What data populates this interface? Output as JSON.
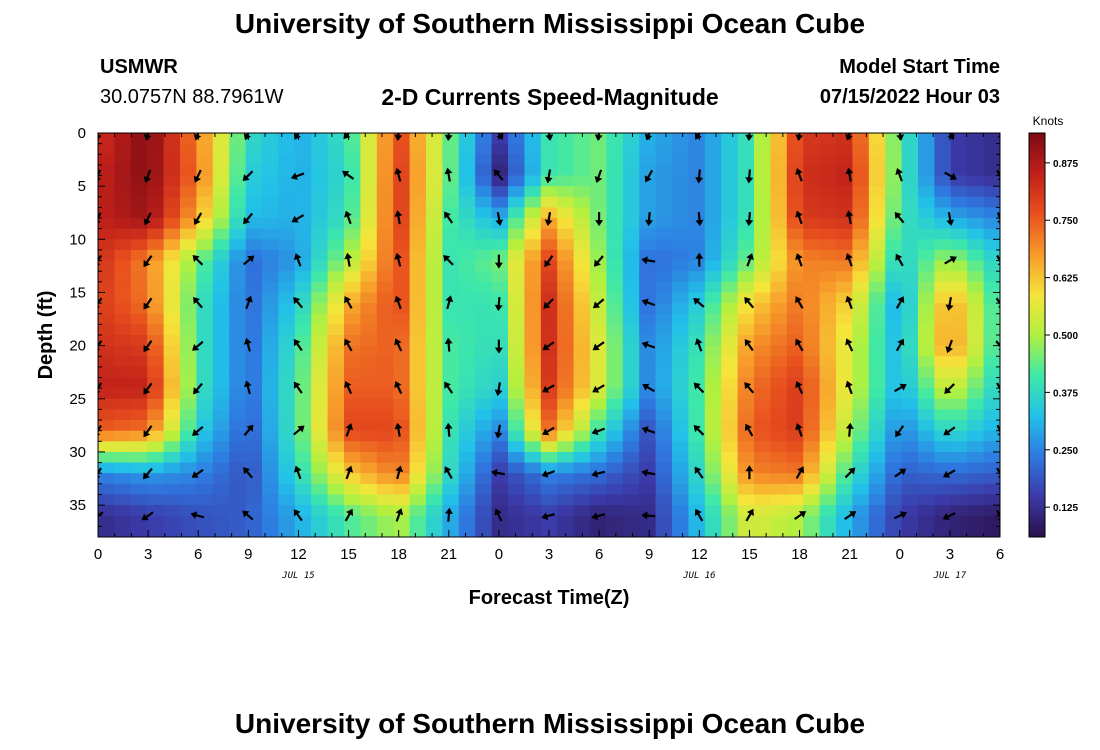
{
  "header": {
    "title": "University of Southern Mississippi Ocean Cube",
    "station": "USMWR",
    "coords": "30.0757N  88.7961W",
    "subtitle": "2-D Currents Speed-Magnitude",
    "model_label": "Model Start Time",
    "model_time": "07/15/2022 Hour 03"
  },
  "footer": {
    "title": "University of Southern Mississippi Ocean Cube"
  },
  "chart_data": {
    "type": "heatmap",
    "xlabel": "Forecast Time(Z)",
    "ylabel": "Depth (ft)",
    "x_ticks": [
      "0",
      "3",
      "6",
      "9",
      "12",
      "15",
      "18",
      "21",
      "0",
      "3",
      "6",
      "9",
      "12",
      "15",
      "18",
      "21",
      "0",
      "3",
      "6"
    ],
    "x_date_labels": [
      {
        "label": "JUL 15",
        "hour": 12
      },
      {
        "label": "JUL 16",
        "hour": 36
      },
      {
        "label": "JUL 17",
        "hour": 51
      }
    ],
    "y_ticks": [
      0,
      5,
      10,
      15,
      20,
      25,
      30,
      35
    ],
    "xlim": [
      0,
      54
    ],
    "ylim": [
      0,
      38
    ],
    "colorbar": {
      "title": "Knots",
      "ticks": [
        "0.125",
        "0.250",
        "0.375",
        "0.500",
        "0.625",
        "0.750",
        "0.875"
      ],
      "range": [
        0.06,
        0.94
      ],
      "colors": [
        "#2a0f4a",
        "#3b3aa8",
        "#2f78e0",
        "#22c1e8",
        "#3fe8a8",
        "#b0f040",
        "#f6e43a",
        "#f79a2a",
        "#e8501e",
        "#c0201a",
        "#7a0a14"
      ]
    },
    "hours": [
      0,
      3,
      6,
      9,
      12,
      15,
      18,
      21,
      24,
      27,
      30,
      33,
      36,
      39,
      42,
      45,
      48,
      51,
      54
    ],
    "depths": [
      0,
      4,
      8,
      12,
      16,
      20,
      24,
      28,
      32,
      36
    ],
    "speed": [
      [
        0.82,
        0.93,
        0.7,
        0.38,
        0.3,
        0.4,
        0.78,
        0.45,
        0.15,
        0.4,
        0.45,
        0.3,
        0.25,
        0.4,
        0.8,
        0.82,
        0.42,
        0.15,
        0.12
      ],
      [
        0.85,
        0.92,
        0.72,
        0.35,
        0.3,
        0.38,
        0.8,
        0.45,
        0.1,
        0.4,
        0.45,
        0.28,
        0.25,
        0.4,
        0.82,
        0.85,
        0.42,
        0.15,
        0.12
      ],
      [
        0.85,
        0.9,
        0.65,
        0.32,
        0.3,
        0.4,
        0.8,
        0.42,
        0.3,
        0.65,
        0.45,
        0.28,
        0.25,
        0.4,
        0.8,
        0.82,
        0.4,
        0.3,
        0.25
      ],
      [
        0.82,
        0.7,
        0.45,
        0.22,
        0.28,
        0.5,
        0.78,
        0.4,
        0.45,
        0.78,
        0.48,
        0.22,
        0.25,
        0.45,
        0.7,
        0.72,
        0.35,
        0.5,
        0.35
      ],
      [
        0.8,
        0.72,
        0.4,
        0.22,
        0.35,
        0.65,
        0.78,
        0.4,
        0.4,
        0.82,
        0.52,
        0.22,
        0.35,
        0.6,
        0.72,
        0.6,
        0.28,
        0.68,
        0.38
      ],
      [
        0.82,
        0.8,
        0.4,
        0.22,
        0.4,
        0.72,
        0.75,
        0.42,
        0.38,
        0.82,
        0.55,
        0.25,
        0.4,
        0.68,
        0.75,
        0.55,
        0.3,
        0.7,
        0.38
      ],
      [
        0.85,
        0.85,
        0.4,
        0.22,
        0.42,
        0.75,
        0.75,
        0.42,
        0.35,
        0.8,
        0.55,
        0.25,
        0.42,
        0.72,
        0.8,
        0.55,
        0.3,
        0.55,
        0.35
      ],
      [
        0.75,
        0.72,
        0.35,
        0.2,
        0.42,
        0.78,
        0.78,
        0.4,
        0.25,
        0.72,
        0.4,
        0.18,
        0.42,
        0.75,
        0.8,
        0.5,
        0.25,
        0.38,
        0.3
      ],
      [
        0.25,
        0.28,
        0.25,
        0.18,
        0.38,
        0.62,
        0.72,
        0.38,
        0.15,
        0.25,
        0.22,
        0.15,
        0.38,
        0.7,
        0.72,
        0.4,
        0.2,
        0.22,
        0.2
      ],
      [
        0.12,
        0.15,
        0.18,
        0.2,
        0.3,
        0.42,
        0.5,
        0.3,
        0.12,
        0.15,
        0.1,
        0.12,
        0.32,
        0.55,
        0.5,
        0.3,
        0.15,
        0.1,
        0.08
      ]
    ],
    "vector_hours": [
      0,
      3,
      6,
      9,
      12,
      15,
      18,
      21,
      24,
      27,
      30,
      33,
      36,
      39,
      42,
      45,
      48,
      51,
      54
    ],
    "vector_depths": [
      0,
      4,
      8,
      12,
      16,
      20,
      24,
      28,
      32,
      36
    ],
    "vector_dir_deg": [
      [
        100,
        105,
        110,
        115,
        120,
        130,
        100,
        95,
        60,
        80,
        100,
        110,
        120,
        95,
        100,
        110,
        80,
        60,
        60
      ],
      [
        110,
        110,
        115,
        135,
        160,
        215,
        255,
        260,
        230,
        100,
        110,
        120,
        95,
        95,
        250,
        260,
        250,
        30,
        60
      ],
      [
        115,
        115,
        120,
        130,
        150,
        250,
        260,
        235,
        80,
        100,
        90,
        95,
        85,
        95,
        250,
        260,
        230,
        80,
        70
      ],
      [
        120,
        125,
        225,
        320,
        250,
        260,
        255,
        225,
        90,
        125,
        130,
        190,
        270,
        290,
        250,
        250,
        240,
        330,
        60
      ],
      [
        125,
        125,
        230,
        290,
        230,
        240,
        250,
        285,
        95,
        135,
        140,
        200,
        220,
        230,
        240,
        250,
        300,
        100,
        55
      ],
      [
        125,
        125,
        140,
        255,
        235,
        240,
        245,
        265,
        90,
        145,
        145,
        200,
        250,
        235,
        240,
        245,
        300,
        110,
        50
      ],
      [
        120,
        125,
        130,
        255,
        235,
        245,
        245,
        235,
        100,
        150,
        150,
        210,
        225,
        230,
        245,
        250,
        330,
        135,
        60
      ],
      [
        120,
        125,
        140,
        310,
        320,
        290,
        260,
        265,
        100,
        150,
        160,
        200,
        225,
        240,
        250,
        275,
        125,
        145,
        65
      ],
      [
        120,
        130,
        145,
        230,
        250,
        290,
        285,
        240,
        190,
        160,
        165,
        190,
        235,
        270,
        300,
        315,
        325,
        150,
        60
      ],
      [
        145,
        145,
        195,
        220,
        235,
        300,
        290,
        275,
        245,
        165,
        165,
        185,
        240,
        300,
        325,
        325,
        335,
        155,
        60
      ]
    ]
  }
}
